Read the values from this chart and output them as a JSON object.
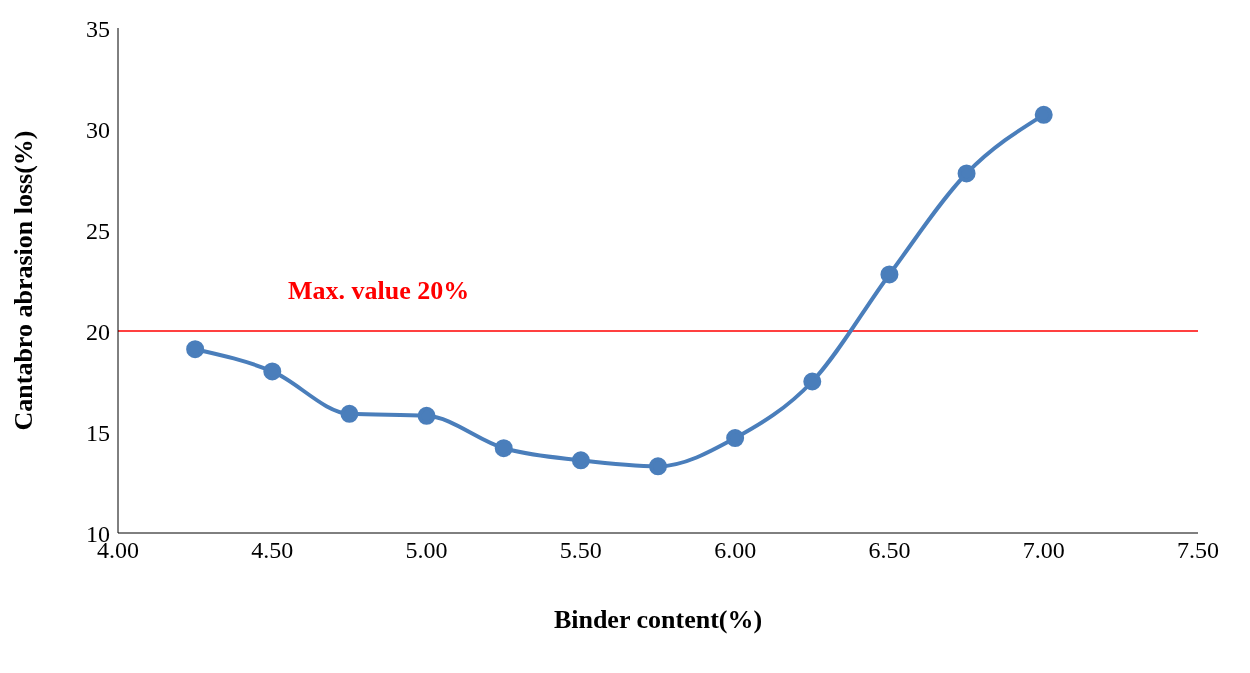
{
  "chart_data": {
    "type": "line",
    "xlabel": "Binder content(%)",
    "ylabel": "Cantabro abrasion loss(%)",
    "x": [
      4.25,
      4.5,
      4.75,
      5.0,
      5.25,
      5.5,
      5.75,
      6.0,
      6.25,
      6.5,
      6.75,
      7.0
    ],
    "series": [
      {
        "color": "#4a7ebb",
        "values": [
          19.1,
          18.0,
          15.9,
          15.8,
          14.2,
          13.6,
          13.3,
          14.7,
          17.5,
          22.8,
          27.8,
          30.7
        ]
      }
    ],
    "xlim": [
      4.0,
      7.5
    ],
    "xticks": [
      {
        "value": 4.0,
        "label": "4.00"
      },
      {
        "value": 4.5,
        "label": "4.50"
      },
      {
        "value": 5.0,
        "label": "5.00"
      },
      {
        "value": 5.5,
        "label": "5.50"
      },
      {
        "value": 6.0,
        "label": "6.00"
      },
      {
        "value": 6.5,
        "label": "6.50"
      },
      {
        "value": 7.0,
        "label": "7.00"
      },
      {
        "value": 7.5,
        "label": "7.50"
      }
    ],
    "ylim": [
      10,
      35
    ],
    "yticks": [
      10,
      15,
      20,
      25,
      30,
      35
    ],
    "ref_lines": [
      {
        "axis": "y",
        "value": 20,
        "label": "Max. value 20%",
        "color": "#ff0000"
      }
    ],
    "grid": false,
    "legend": false,
    "marker": "circle",
    "line_style": "solid"
  }
}
